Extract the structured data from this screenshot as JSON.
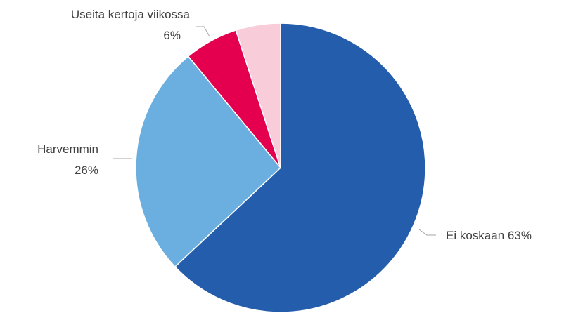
{
  "chart_data": {
    "type": "pie",
    "title": "",
    "start": "12 o'clock",
    "direction": "clockwise",
    "slices": [
      {
        "label": "Ei koskaan",
        "value": 63,
        "value_text": "63%",
        "color": "#255DAD"
      },
      {
        "label": "Harvemmin",
        "value": 26,
        "value_text": "26%",
        "color": "#6AAFE0"
      },
      {
        "label": "Useita kertoja viikossa",
        "value": 6,
        "value_text": "6%",
        "color": "#E4004F"
      },
      {
        "label": "",
        "value": 5,
        "value_text": "",
        "color": "#F9CCD9"
      }
    ]
  }
}
